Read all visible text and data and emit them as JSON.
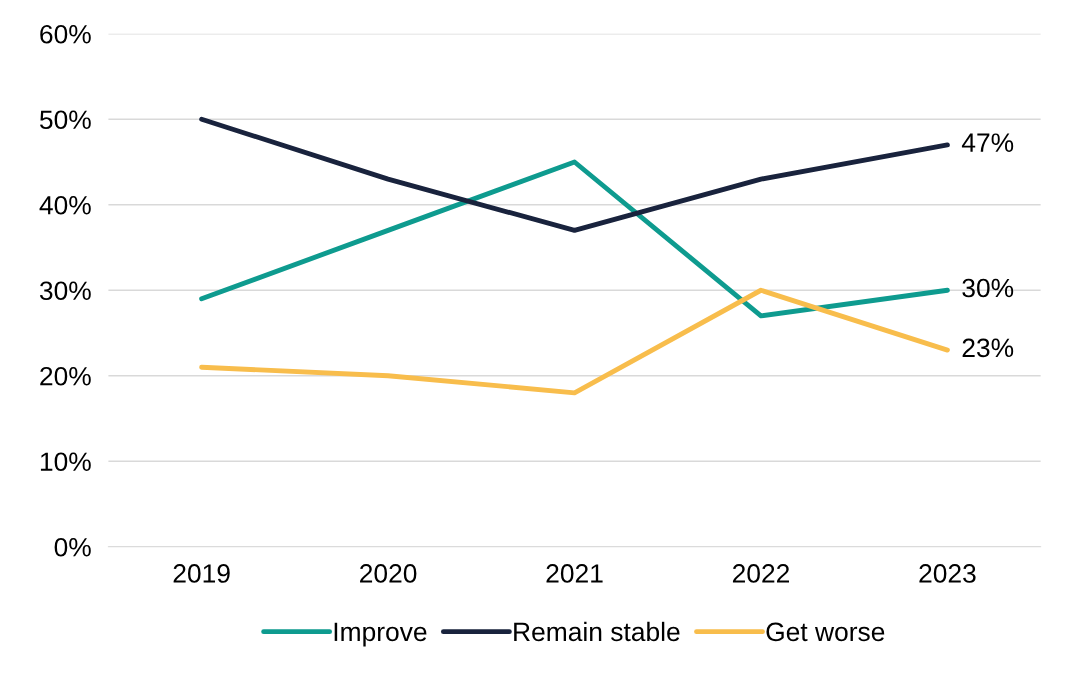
{
  "chart_data": {
    "type": "line",
    "categories": [
      "2019",
      "2020",
      "2021",
      "2022",
      "2023"
    ],
    "series": [
      {
        "name": "Improve",
        "color": "#0e9b8f",
        "values": [
          29,
          37,
          45,
          27,
          30
        ],
        "value_labels": [
          null,
          null,
          null,
          null,
          "30%"
        ]
      },
      {
        "name": "Remain stable",
        "color": "#19233d",
        "values": [
          50,
          43,
          37,
          43,
          47
        ],
        "value_labels": [
          null,
          null,
          null,
          null,
          "47%"
        ]
      },
      {
        "name": "Get worse",
        "color": "#f8bd4c",
        "values": [
          21,
          20,
          18,
          30,
          23
        ],
        "value_labels": [
          null,
          null,
          null,
          null,
          "23%"
        ]
      }
    ],
    "ylim": [
      0,
      60
    ],
    "yticks": [
      {
        "value": 0,
        "label": "0%"
      },
      {
        "value": 10,
        "label": "10%"
      },
      {
        "value": 20,
        "label": "20%"
      },
      {
        "value": 30,
        "label": "30%"
      },
      {
        "value": 40,
        "label": "40%"
      },
      {
        "value": 50,
        "label": "50%"
      },
      {
        "value": 60,
        "label": "60%"
      }
    ],
    "grid": "y",
    "legend": "bottom",
    "marker": "none",
    "line_style": "solid"
  }
}
